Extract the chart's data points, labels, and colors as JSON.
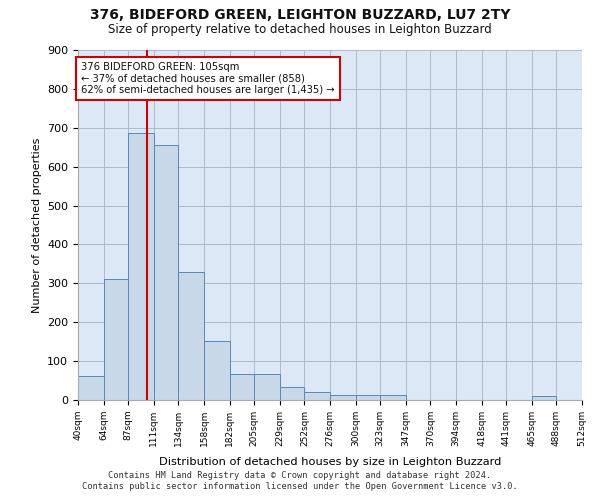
{
  "title1": "376, BIDEFORD GREEN, LEIGHTON BUZZARD, LU7 2TY",
  "title2": "Size of property relative to detached houses in Leighton Buzzard",
  "xlabel": "Distribution of detached houses by size in Leighton Buzzard",
  "ylabel": "Number of detached properties",
  "footer1": "Contains HM Land Registry data © Crown copyright and database right 2024.",
  "footer2": "Contains public sector information licensed under the Open Government Licence v3.0.",
  "annotation_line1": "376 BIDEFORD GREEN: 105sqm",
  "annotation_line2": "← 37% of detached houses are smaller (858)",
  "annotation_line3": "62% of semi-detached houses are larger (1,435) →",
  "bar_color": "#c8d8e8",
  "bar_edge_color": "#5588bb",
  "vline_color": "#cc0000",
  "annotation_box_color": "#cc0000",
  "bin_edges": [
    40,
    64,
    87,
    111,
    134,
    158,
    182,
    205,
    229,
    252,
    276,
    300,
    323,
    347,
    370,
    394,
    418,
    441,
    465,
    488,
    512
  ],
  "bar_heights": [
    62,
    310,
    687,
    655,
    330,
    152,
    67,
    67,
    33,
    20,
    12,
    12,
    12,
    0,
    0,
    0,
    0,
    0,
    10,
    0
  ],
  "vline_x": 105,
  "ylim": [
    0,
    900
  ],
  "yticks": [
    0,
    100,
    200,
    300,
    400,
    500,
    600,
    700,
    800,
    900
  ],
  "background_color": "#dce8f5",
  "grid_color": "#aabbcc"
}
